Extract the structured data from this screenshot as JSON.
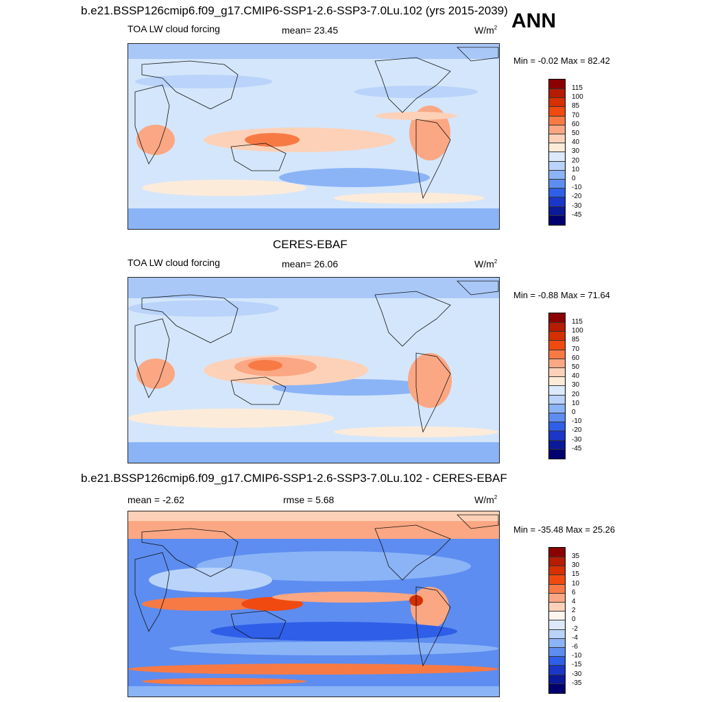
{
  "season": "ANN",
  "panels": [
    {
      "title": "b.e21.BSSP126cmip6.f09_g17.CMIP6-SSP1-2.6-SSP3-7.0Lu.102 (yrs 2015-2039)",
      "variable": "TOA LW cloud forcing",
      "mean_text": "mean=  23.45",
      "units_base": "W/m",
      "units_exp": "2",
      "minmax": "Min =  -0.02 Max =  82.42",
      "levels": [
        "115",
        "100",
        "85",
        "70",
        "60",
        "50",
        "40",
        "30",
        "20",
        "10",
        "0",
        "-10",
        "-20",
        "-30",
        "-45"
      ],
      "colors": [
        "#8b0000",
        "#b51c00",
        "#d63000",
        "#f04a10",
        "#f77a45",
        "#fba783",
        "#fdd1b8",
        "#fdebd9",
        "#dbe9fb",
        "#b9d3fa",
        "#8bb4f7",
        "#5d8df0",
        "#2f5fe8",
        "#1a37c8",
        "#0b1a98",
        "#00006e"
      ]
    },
    {
      "title": "CERES-EBAF",
      "variable": "TOA LW cloud forcing",
      "mean_text": "mean=  26.06",
      "units_base": "W/m",
      "units_exp": "2",
      "minmax": "Min =  -0.88 Max =  71.64",
      "levels": [
        "115",
        "100",
        "85",
        "70",
        "60",
        "50",
        "40",
        "30",
        "20",
        "10",
        "0",
        "-10",
        "-20",
        "-30",
        "-45"
      ],
      "colors": [
        "#8b0000",
        "#b51c00",
        "#d63000",
        "#f04a10",
        "#f77a45",
        "#fba783",
        "#fdd1b8",
        "#fdebd9",
        "#dbe9fb",
        "#b9d3fa",
        "#8bb4f7",
        "#5d8df0",
        "#2f5fe8",
        "#1a37c8",
        "#0b1a98",
        "#00006e"
      ]
    },
    {
      "title": "b.e21.BSSP126cmip6.f09_g17.CMIP6-SSP1-2.6-SSP3-7.0Lu.102 - CERES-EBAF",
      "mean_text": "mean =  -2.62",
      "rmse_text": "rmse =   5.68",
      "units_base": "W/m",
      "units_exp": "2",
      "minmax": "Min = -35.48 Max =  25.26",
      "levels": [
        "35",
        "30",
        "15",
        "10",
        "6",
        "4",
        "2",
        "0",
        "-2",
        "-4",
        "-6",
        "-10",
        "-15",
        "-30",
        "-35"
      ],
      "colors": [
        "#8b0000",
        "#b51c00",
        "#d63000",
        "#f04a10",
        "#f77a45",
        "#fba783",
        "#fdd1b8",
        "#fdf5ee",
        "#dbe9fb",
        "#b9d3fa",
        "#8bb4f7",
        "#5d8df0",
        "#2f5fe8",
        "#1a37c8",
        "#0b1a98",
        "#00006e"
      ]
    }
  ]
}
